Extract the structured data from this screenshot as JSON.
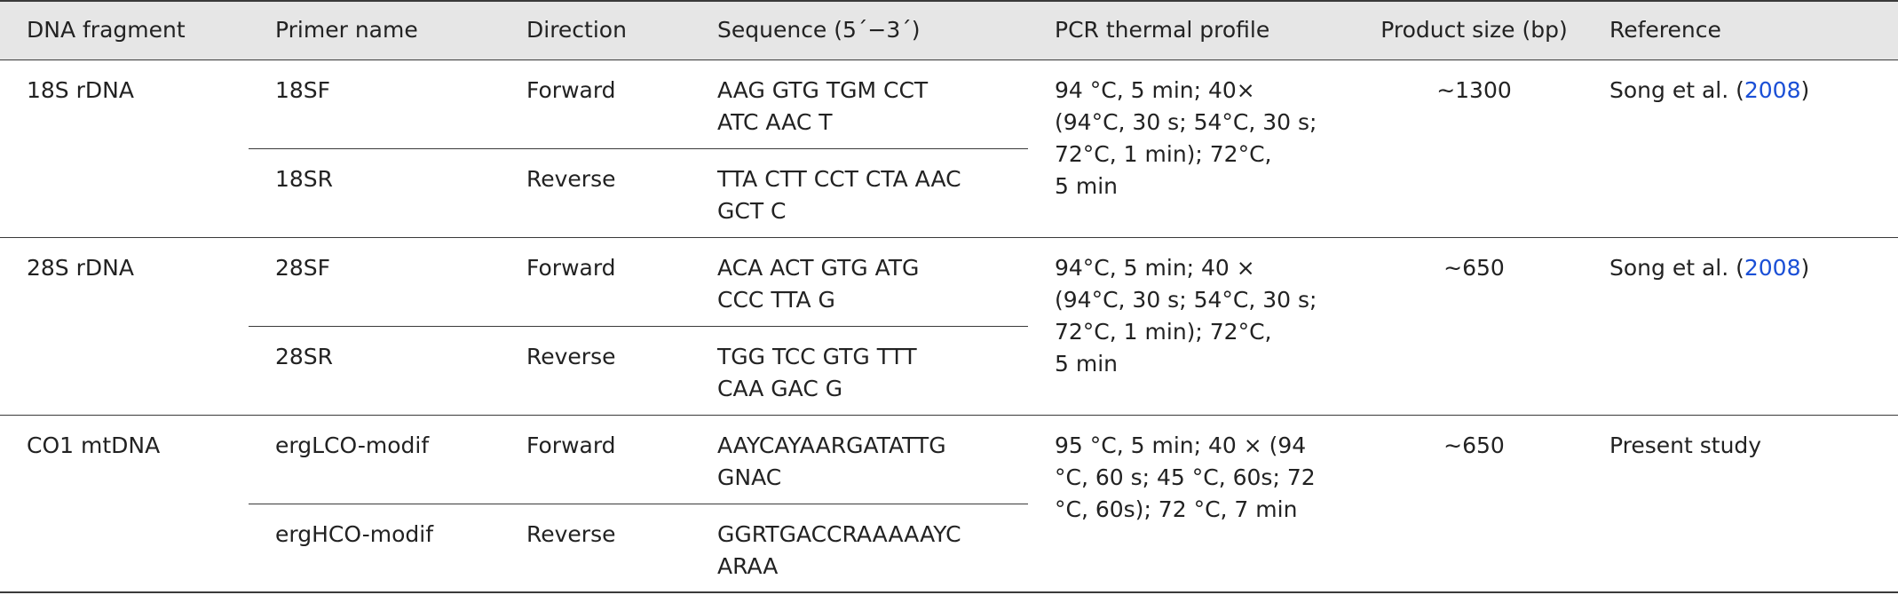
{
  "columns": [
    "DNA fragment",
    "Primer name",
    "Direction",
    "Sequence (5´−3´)",
    "PCR thermal profile",
    "Product size (bp)",
    "Reference"
  ],
  "groups": [
    {
      "fragment": "18S rDNA",
      "profile": [
        "94 °C, 5 min; 40×",
        "(94°C, 30 s; 54°C, 30 s;",
        "72°C, 1 min); 72°C,",
        "5 min"
      ],
      "size": "∼1300",
      "reference_text": "Song et al. (",
      "reference_year": "2008",
      "reference_close": ")",
      "primers": [
        {
          "name": "18SF",
          "direction": "Forward",
          "sequence": [
            "AAG GTG TGM CCT",
            "ATC AAC T"
          ]
        },
        {
          "name": "18SR",
          "direction": "Reverse",
          "sequence": [
            "TTA CTT CCT CTA AAC",
            "GCT C"
          ]
        }
      ]
    },
    {
      "fragment": "28S rDNA",
      "profile": [
        "94°C, 5 min; 40 ×",
        "(94°C, 30 s; 54°C, 30 s;",
        "72°C, 1 min); 72°C,",
        "5 min"
      ],
      "size": "∼650",
      "reference_text": "Song et al. (",
      "reference_year": "2008",
      "reference_close": ")",
      "primers": [
        {
          "name": "28SF",
          "direction": "Forward",
          "sequence": [
            "ACA ACT GTG ATG",
            "CCC TTA G"
          ]
        },
        {
          "name": "28SR",
          "direction": "Reverse",
          "sequence": [
            "TGG TCC GTG TTT",
            "CAA GAC G"
          ]
        }
      ]
    },
    {
      "fragment": "CO1 mtDNA",
      "profile": [
        "95 °C, 5 min; 40 × (94",
        "°C, 60 s; 45 °C, 60s; 72",
        "°C, 60s); 72 °C, 7 min"
      ],
      "size": "∼650",
      "reference_text": "Present study",
      "reference_year": "",
      "reference_close": "",
      "primers": [
        {
          "name": "ergLCO-modif",
          "direction": "Forward",
          "sequence": [
            "AAYCAYAARGATATTG",
            "GNAC"
          ]
        },
        {
          "name": "ergHCO-modif",
          "direction": "Reverse",
          "sequence": [
            "GGRTGACCRAAAAAYC",
            "ARAA"
          ]
        }
      ]
    }
  ]
}
